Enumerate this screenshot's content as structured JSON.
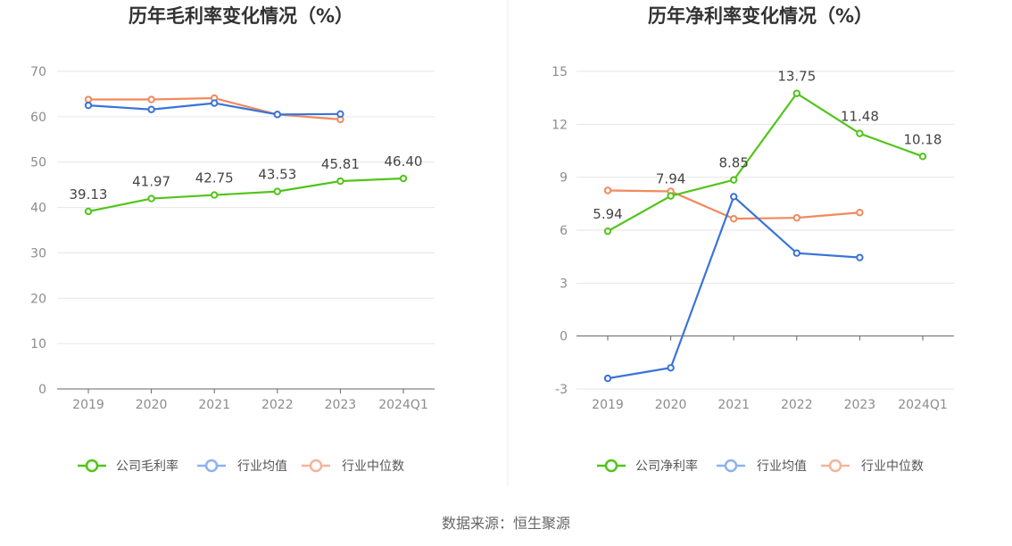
{
  "colors": {
    "company": "#52c41a",
    "industry_avg": "#3a73d9",
    "industry_median": "#f08a5d",
    "industry_avg_legend": "#8cb2f0",
    "industry_median_legend": "#f5b39b",
    "grid": "#e6e6e6",
    "axis": "#666666",
    "divider": "#eeeeee"
  },
  "source": "数据来源：恒生聚源",
  "chart_data": [
    {
      "type": "line",
      "title": "历年毛利率变化情况（%）",
      "categories": [
        "2019",
        "2020",
        "2021",
        "2022",
        "2023",
        "2024Q1"
      ],
      "yticks": [
        0,
        10,
        20,
        30,
        40,
        50,
        60,
        70
      ],
      "ylim": [
        0,
        70
      ],
      "series": [
        {
          "name": "公司毛利率",
          "key": "company",
          "values": [
            39.13,
            41.97,
            42.75,
            43.53,
            45.81,
            46.4
          ],
          "labels": [
            "39.13",
            "41.97",
            "42.75",
            "43.53",
            "45.81",
            "46.40"
          ]
        },
        {
          "name": "行业均值",
          "key": "industry_avg",
          "values": [
            62.5,
            61.6,
            63.0,
            60.5,
            60.6,
            null
          ]
        },
        {
          "name": "行业中位数",
          "key": "industry_median",
          "values": [
            63.8,
            63.8,
            64.1,
            60.5,
            59.4,
            null
          ]
        }
      ],
      "legend": "bottom"
    },
    {
      "type": "line",
      "title": "历年净利率变化情况（%）",
      "categories": [
        "2019",
        "2020",
        "2021",
        "2022",
        "2023",
        "2024Q1"
      ],
      "yticks": [
        -3,
        0,
        3,
        6,
        9,
        12,
        15
      ],
      "ylim": [
        -3,
        15
      ],
      "series": [
        {
          "name": "公司净利率",
          "key": "company",
          "values": [
            5.94,
            7.94,
            8.85,
            13.75,
            11.48,
            10.18
          ],
          "labels": [
            "5.94",
            "7.94",
            "8.85",
            "13.75",
            "11.48",
            "10.18"
          ]
        },
        {
          "name": "行业均值",
          "key": "industry_avg",
          "values": [
            -2.4,
            -1.8,
            7.9,
            4.7,
            4.45,
            null
          ]
        },
        {
          "name": "行业中位数",
          "key": "industry_median",
          "values": [
            8.25,
            8.2,
            6.65,
            6.7,
            7.0,
            null
          ]
        }
      ],
      "legend": "bottom"
    }
  ]
}
